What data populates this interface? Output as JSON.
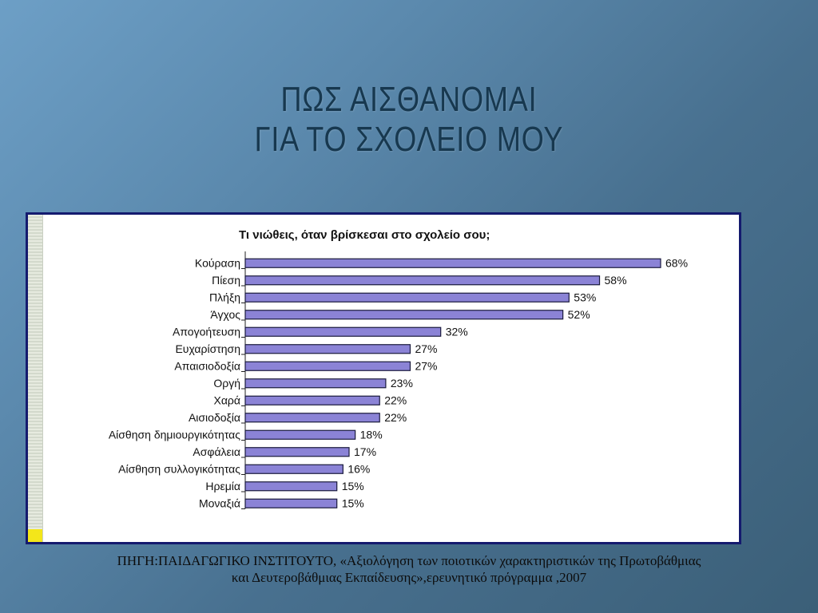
{
  "slide": {
    "title_line1": "ΠΩΣ ΑΙΣΘΑΝΟΜΑΙ",
    "title_line2": "ΓΙΑ ΤΟ ΣΧΟΛΕΙΟ ΜΟΥ",
    "source_line1": "ΠΗΓΗ:ΠΑΙΔΑΓΩΓΙΚΟ ΙΝΣΤΙΤΟΥΤΟ, «Αξιολόγηση των ποιοτικών χαρακτηριστικών της Πρωτοβάθμιας",
    "source_line2": "και Δευτεροβάθμιας Εκπαίδευσης»,ερευνητικό πρόγραμμα ,2007"
  },
  "colors": {
    "bar_fill": "#8b83d6",
    "bar_stroke": "#1a1a3c",
    "frame_border": "#141a6e"
  },
  "chart_data": {
    "type": "bar",
    "orientation": "horizontal",
    "title": "Τι νιώθεις, όταν βρίσκεσαι στο σχολείο σου;",
    "categories": [
      "Κούραση",
      "Πίεση",
      "Πλήξη",
      "Άγχος",
      "Απογοήτευση",
      "Ευχαρίστηση",
      "Απαισιοδοξία",
      "Οργή",
      "Χαρά",
      "Αισιοδοξία",
      "Αίσθηση δημιουργικότητας",
      "Ασφάλεια",
      "Αίσθηση συλλογικότητας",
      "Ηρεμία",
      "Μοναξιά"
    ],
    "values": [
      68,
      58,
      53,
      52,
      32,
      27,
      27,
      23,
      22,
      22,
      18,
      17,
      16,
      15,
      15
    ],
    "value_labels": [
      "68%",
      "58%",
      "53%",
      "52%",
      "32%",
      "27%",
      "27%",
      "23%",
      "22%",
      "22%",
      "18%",
      "17%",
      "16%",
      "15%",
      "15%"
    ],
    "xlim": [
      0,
      68
    ],
    "grid": false,
    "legend": "none"
  }
}
